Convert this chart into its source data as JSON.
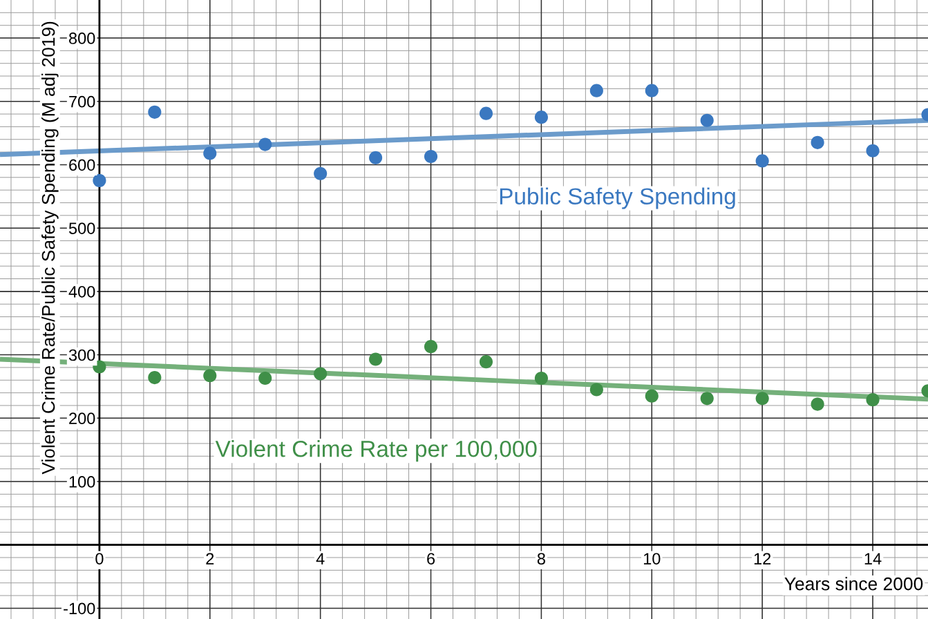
{
  "chart_data": {
    "type": "scatter",
    "xlabel": "Years since 2000",
    "ylabel": "Violent Crime Rate/Public Safety Spending (M adj 2019)",
    "xlim": [
      -1.8,
      15
    ],
    "ylim": [
      -117,
      860
    ],
    "xticks": [
      0,
      2,
      4,
      6,
      8,
      10,
      12,
      14
    ],
    "yticks": [
      -100,
      100,
      200,
      300,
      400,
      500,
      600,
      700,
      800
    ],
    "grid": true,
    "marker": "circle",
    "series": [
      {
        "name": "Public Safety Spending",
        "color": "#3a78c0",
        "x": [
          0,
          1,
          2,
          3,
          4,
          5,
          6,
          7,
          8,
          9,
          10,
          11,
          12,
          13,
          14,
          15
        ],
        "values": [
          575,
          683,
          618,
          632,
          586,
          611,
          613,
          681,
          675,
          717,
          717,
          670,
          606,
          635,
          622,
          679
        ]
      },
      {
        "name": "Violent Crime Rate per 100,000",
        "color": "#3f8f48",
        "x": [
          0,
          1,
          2,
          3,
          4,
          5,
          6,
          7,
          8,
          9,
          10,
          11,
          12,
          13,
          14,
          15
        ],
        "values": [
          281,
          264,
          267,
          263,
          270,
          293,
          313,
          289,
          263,
          245,
          235,
          231,
          231,
          222,
          229,
          243
        ]
      },
      {
        "type": "line",
        "marker": "none",
        "color": "#6b9bcb",
        "x": [
          -1.8,
          15
        ],
        "values": [
          616,
          670
        ]
      },
      {
        "type": "line",
        "marker": "none",
        "color": "#74b07a",
        "x": [
          -1.8,
          15
        ],
        "values": [
          293,
          230
        ]
      }
    ]
  }
}
